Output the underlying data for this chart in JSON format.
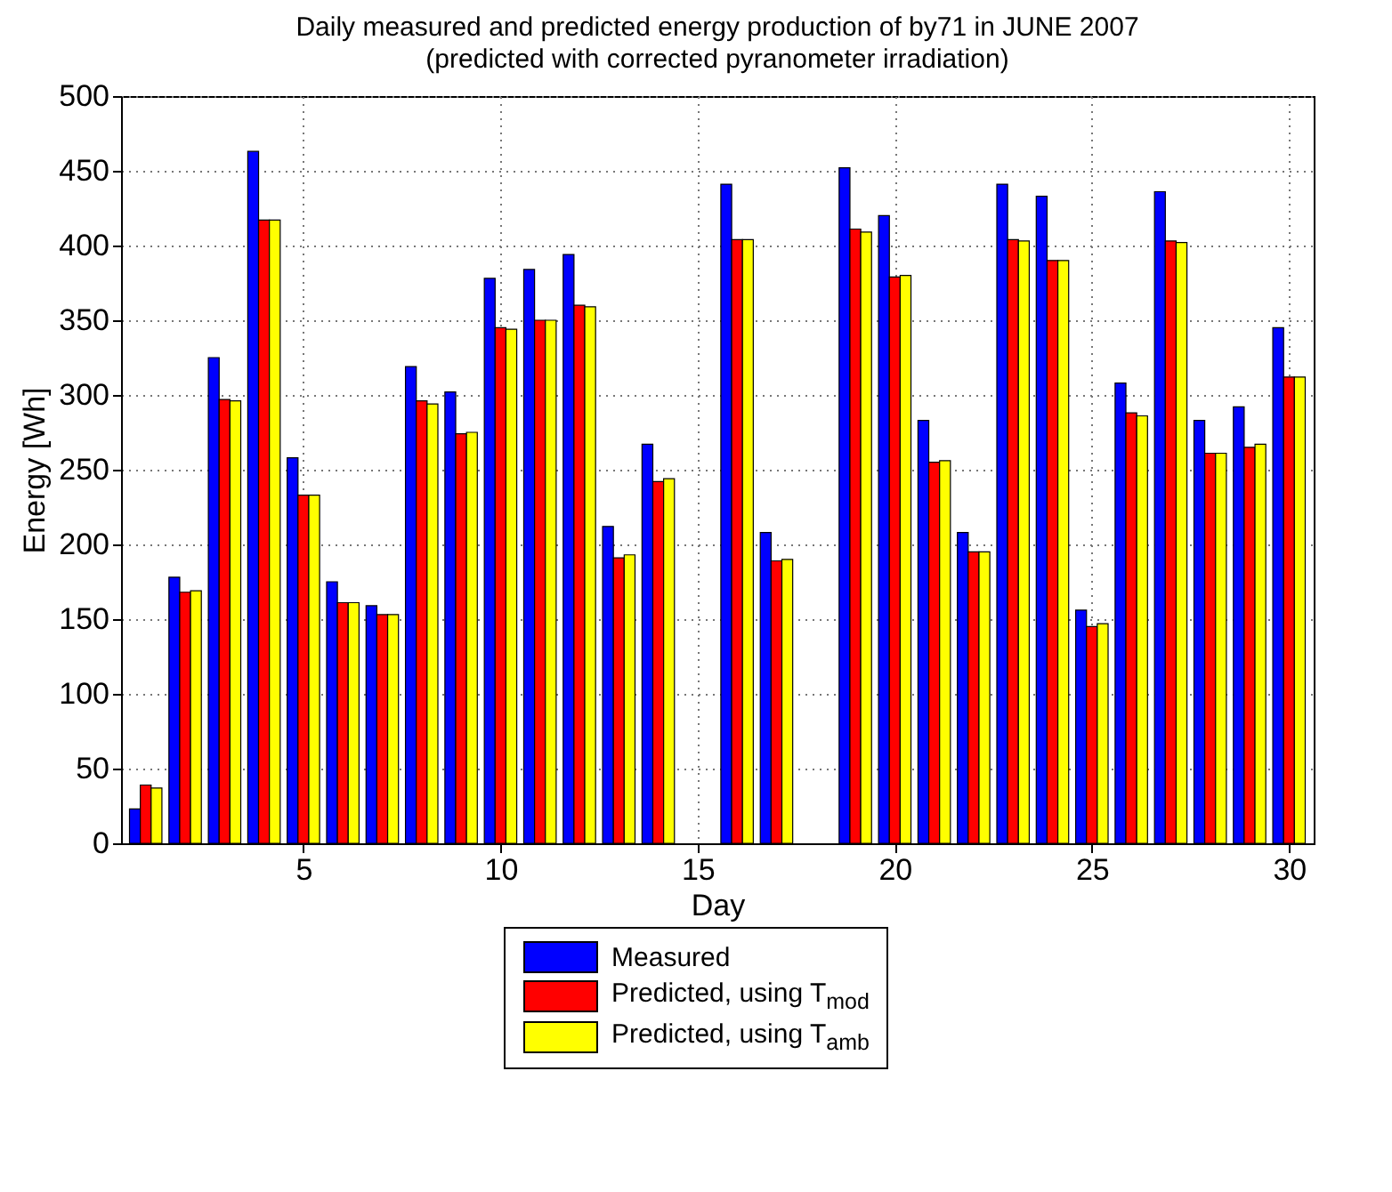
{
  "chart_data": {
    "type": "bar",
    "title": "Daily measured and predicted energy production of by71 in JUNE 2007",
    "subtitle": "(predicted with corrected pyranometer irradiation)",
    "xlabel": "Day",
    "ylabel": "Energy [Wh]",
    "x": [
      1,
      2,
      3,
      4,
      5,
      6,
      7,
      8,
      9,
      10,
      11,
      12,
      13,
      14,
      15,
      16,
      17,
      18,
      19,
      20,
      21,
      22,
      23,
      24,
      25,
      26,
      27,
      28,
      29,
      30
    ],
    "series": [
      {
        "name": "Measured",
        "color": "#0000ff",
        "values": [
          23,
          178,
          325,
          463,
          258,
          175,
          159,
          319,
          302,
          378,
          384,
          394,
          212,
          267,
          null,
          441,
          208,
          null,
          452,
          420,
          283,
          208,
          441,
          433,
          156,
          308,
          436,
          283,
          292,
          345
        ]
      },
      {
        "name": "Predicted, using T$_{mod}$",
        "color": "#ff0000",
        "values": [
          39,
          168,
          297,
          417,
          233,
          161,
          153,
          296,
          274,
          345,
          350,
          360,
          191,
          242,
          null,
          404,
          189,
          null,
          411,
          379,
          255,
          195,
          404,
          390,
          145,
          288,
          403,
          261,
          265,
          312
        ]
      },
      {
        "name": "Predicted, using T$_{amb}$",
        "color": "#ffff00",
        "values": [
          37,
          169,
          296,
          417,
          233,
          161,
          153,
          294,
          275,
          344,
          350,
          359,
          193,
          244,
          null,
          404,
          190,
          null,
          409,
          380,
          256,
          195,
          403,
          390,
          147,
          286,
          402,
          261,
          267,
          312
        ]
      }
    ],
    "xlim": [
      0.6,
      30.4
    ],
    "xticks": [
      5,
      10,
      15,
      20,
      25,
      30
    ],
    "ylim": [
      0,
      500
    ],
    "yticks": [
      0,
      50,
      100,
      150,
      200,
      250,
      300,
      350,
      400,
      450,
      500
    ],
    "grid": true,
    "legend": "bottom"
  }
}
